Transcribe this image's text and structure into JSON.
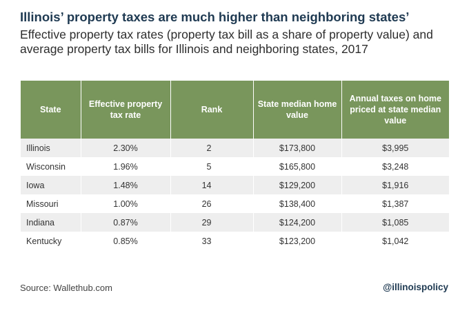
{
  "title": "Illinois’ property taxes are much higher than neighboring states’",
  "subtitle": "Effective property tax rates (property tax bill as a share of property value) and average property tax bills for Illinois and neighboring states, 2017",
  "source": "Source: Wallethub.com",
  "handle": "@illinoispolicy",
  "colors": {
    "header_bg": "#79965c",
    "title": "#1f3a52",
    "row_alt": "#eeeeee"
  },
  "chart_data": {
    "type": "table",
    "columns": [
      "State",
      "Effective property tax rate",
      "Rank",
      "State median home value",
      "Annual taxes on home priced at state median value"
    ],
    "rows": [
      [
        "Illinois",
        "2.30%",
        "2",
        "$173,800",
        "$3,995"
      ],
      [
        "Wisconsin",
        "1.96%",
        "5",
        "$165,800",
        "$3,248"
      ],
      [
        "Iowa",
        "1.48%",
        "14",
        "$129,200",
        "$1,916"
      ],
      [
        "Missouri",
        "1.00%",
        "26",
        "$138,400",
        "$1,387"
      ],
      [
        "Indiana",
        "0.87%",
        "29",
        "$124,200",
        "$1,085"
      ],
      [
        "Kentucky",
        "0.85%",
        "33",
        "$123,200",
        "$1,042"
      ]
    ]
  }
}
